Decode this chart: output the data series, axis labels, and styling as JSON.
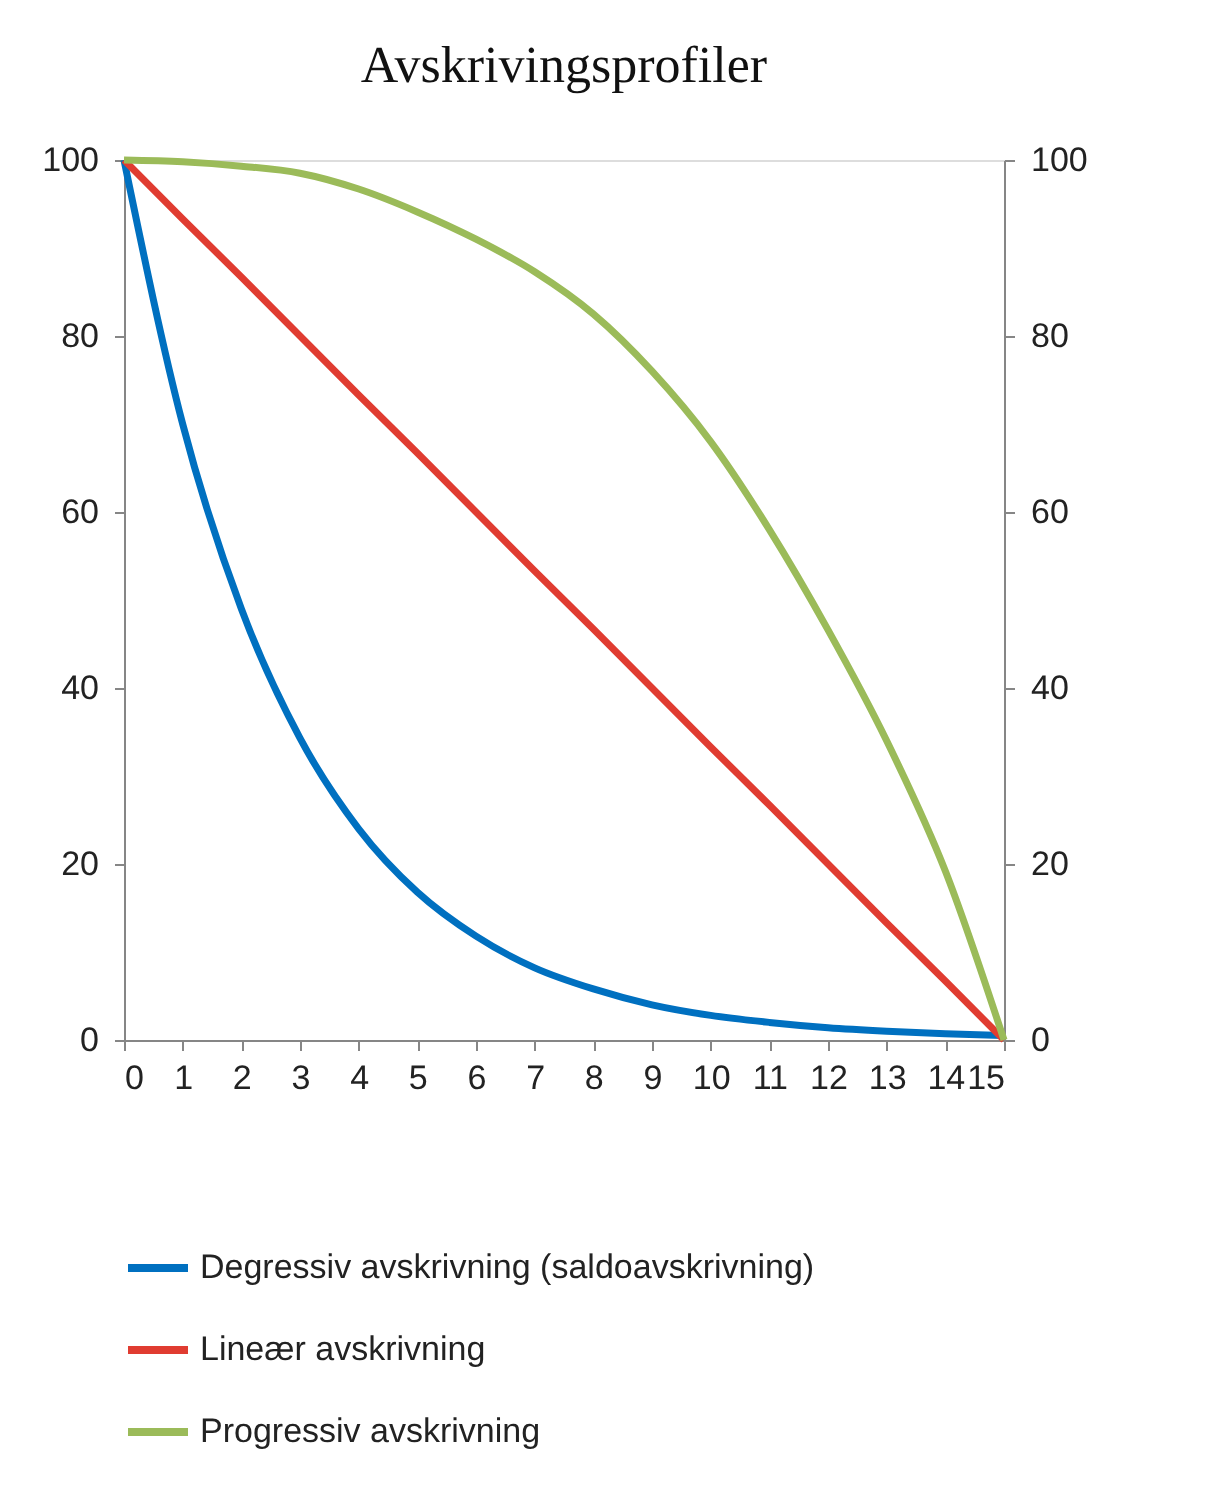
{
  "chart_data": {
    "type": "line",
    "title": "Avskrivingsprofiler",
    "x": [
      0,
      1,
      2,
      3,
      4,
      5,
      6,
      7,
      8,
      9,
      10,
      11,
      12,
      13,
      14,
      15
    ],
    "series": [
      {
        "name": "Degressiv avskrivning (saldoavskrivning)",
        "color": "#0070c0",
        "values": [
          100,
          70,
          49,
          34.3,
          24,
          16.8,
          11.8,
          8.2,
          5.8,
          4,
          2.8,
          2,
          1.4,
          1,
          0.7,
          0.5
        ]
      },
      {
        "name": "Lineær avskrivning",
        "color": "#e03c31",
        "values": [
          100,
          93.3,
          86.7,
          80,
          73.3,
          66.7,
          60,
          53.3,
          46.7,
          40,
          33.3,
          26.7,
          20,
          13.3,
          6.7,
          0
        ]
      },
      {
        "name": "Progressiv avskrivning",
        "color": "#9bbb59",
        "values": [
          100,
          99.8,
          99.3,
          98.5,
          96.7,
          94.1,
          91,
          87.3,
          82.5,
          76,
          68,
          58,
          46.6,
          34,
          19.2,
          0
        ]
      }
    ],
    "xlim": [
      0,
      15
    ],
    "xticks": [
      0,
      1,
      2,
      3,
      4,
      5,
      6,
      7,
      8,
      9,
      10,
      11,
      12,
      13,
      14,
      15
    ],
    "ylim": [
      0,
      100
    ],
    "yticks": [
      0,
      20,
      40,
      60,
      80,
      100
    ],
    "y2lim": [
      0,
      100
    ],
    "y2ticks": [
      0,
      20,
      40,
      60,
      80,
      100
    ],
    "grid": false,
    "legend": "bottom",
    "marker": "none",
    "line_style": "solid"
  }
}
